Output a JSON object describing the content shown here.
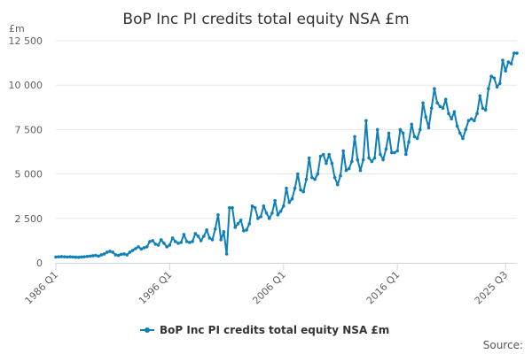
{
  "chart_data": {
    "type": "line",
    "title": "BoP Inc PI credits total equity NSA £m",
    "unit_label": "£m",
    "x_tick_labels": [
      "1986 Q1",
      "1996 Q1",
      "2006 Q1",
      "2016 Q1",
      "2025 Q3"
    ],
    "x_tick_periods": [
      0,
      40,
      80,
      120,
      158
    ],
    "y_tick_labels": [
      "0",
      "2 500",
      "5 000",
      "7 500",
      "10 000",
      "12 500"
    ],
    "y_tick_values": [
      0,
      2500,
      5000,
      7500,
      10000,
      12500
    ],
    "ylim": [
      0,
      12500
    ],
    "grid": true,
    "legend_position": "bottom",
    "series": [
      {
        "name": "BoP Inc PI credits total equity NSA £m",
        "color": "#0f7fb8",
        "values": [
          330,
          340,
          350,
          340,
          330,
          340,
          330,
          320,
          310,
          330,
          340,
          360,
          380,
          400,
          420,
          380,
          450,
          500,
          600,
          650,
          600,
          450,
          420,
          480,
          500,
          450,
          600,
          700,
          800,
          900,
          780,
          850,
          900,
          1200,
          1250,
          1050,
          1000,
          1300,
          1100,
          900,
          1000,
          1400,
          1200,
          1100,
          1150,
          1600,
          1200,
          1150,
          1200,
          1650,
          1500,
          1250,
          1500,
          1850,
          1400,
          1300,
          1900,
          2700,
          1300,
          1750,
          500,
          3100,
          3100,
          2000,
          2200,
          2400,
          1800,
          1850,
          2200,
          3200,
          3100,
          2500,
          2600,
          3200,
          2800,
          2500,
          2800,
          3500,
          2700,
          2900,
          3200,
          4200,
          3400,
          3600,
          4200,
          5000,
          4100,
          4000,
          4700,
          5900,
          4800,
          4700,
          5000,
          6000,
          6100,
          5600,
          6100,
          5600,
          4800,
          4400,
          4900,
          6300,
          5200,
          5300,
          5700,
          7100,
          5800,
          5200,
          5800,
          8000,
          5900,
          5700,
          5900,
          7500,
          6100,
          5800,
          6400,
          7300,
          6200,
          6200,
          6300,
          7500,
          7300,
          6100,
          6800,
          7800,
          7100,
          7000,
          7500,
          9000,
          8200,
          7600,
          8700,
          9800,
          9000,
          8800,
          8700,
          9200,
          8400,
          8100,
          8500,
          7700,
          7300,
          7000,
          7500,
          8000,
          8100,
          8000,
          8400,
          9400,
          8700,
          8600,
          9800,
          10500,
          10400,
          9900,
          10100,
          11400,
          10800,
          11300,
          11200,
          11800,
          11800
        ]
      }
    ],
    "source_label": "Source:"
  }
}
